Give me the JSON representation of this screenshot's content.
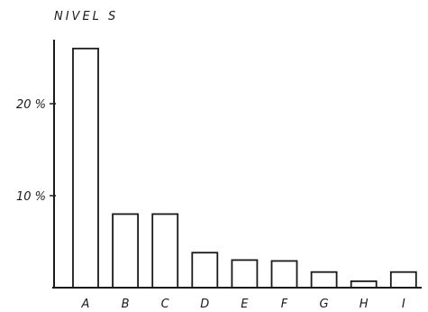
{
  "chart_data": {
    "type": "bar",
    "title": "NIVEL S",
    "xlabel": "",
    "ylabel": "",
    "categories": [
      "A",
      "B",
      "C",
      "D",
      "E",
      "F",
      "G",
      "H",
      "I"
    ],
    "values": [
      26,
      8,
      8,
      3.8,
      3,
      2.9,
      1.7,
      0.7,
      1.7
    ],
    "ylim": [
      0,
      27
    ],
    "yticks": [
      {
        "value": 10,
        "label": "10 %"
      },
      {
        "value": 20,
        "label": "20 %"
      }
    ],
    "grid": false,
    "legend": "none",
    "colors": {
      "bar_fill": "#ffffff",
      "stroke": "#1a1a1a"
    }
  }
}
